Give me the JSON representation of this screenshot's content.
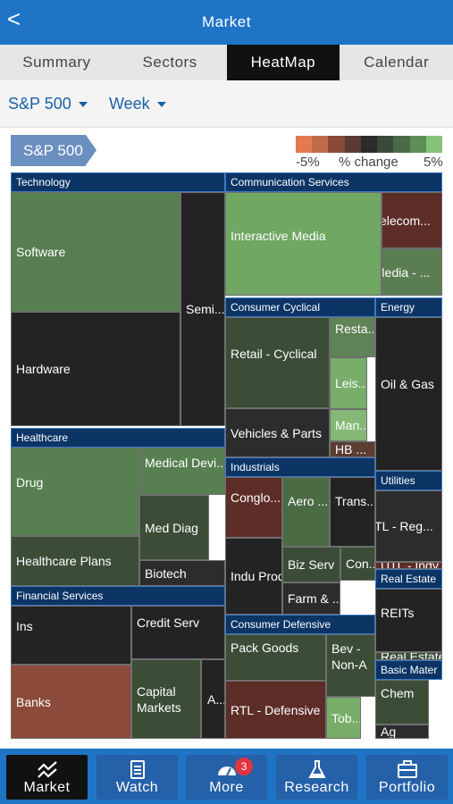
{
  "header": {
    "title": "Market",
    "back": "<"
  },
  "tabs": [
    {
      "label": "Summary"
    },
    {
      "label": "Sectors"
    },
    {
      "label": "HeatMap"
    },
    {
      "label": "Calendar"
    }
  ],
  "filters": {
    "index": "S&P 500",
    "period": "Week"
  },
  "index_pill": "S&P 500",
  "legend": {
    "low": "-5%",
    "mid": "% change",
    "high": "5%",
    "colors": [
      "#e27a52",
      "#bf6a4a",
      "#8a4a3a",
      "#5a3a33",
      "#2d2a2a",
      "#3a4a38",
      "#4d6a48",
      "#5f8f58",
      "#86c27a"
    ]
  },
  "sectors": [
    {
      "name": "Technology"
    },
    {
      "name": "Communication Services"
    },
    {
      "name": "Consumer Cyclical"
    },
    {
      "name": "Energy"
    },
    {
      "name": "Healthcare"
    },
    {
      "name": "Industrials"
    },
    {
      "name": "Utilities"
    },
    {
      "name": "Financial Services"
    },
    {
      "name": "Real Estate"
    },
    {
      "name": "Consumer Defensive"
    },
    {
      "name": "Basic Mater"
    }
  ],
  "cells": [
    {
      "label": "Software",
      "color": "#577f51"
    },
    {
      "label": "Hardware",
      "color": "#232323"
    },
    {
      "label": "Semi...",
      "color": "#232323"
    },
    {
      "label": "Interactive Media",
      "color": "#6fa763"
    },
    {
      "label": "Telecom...",
      "color": "#5d2d27"
    },
    {
      "label": "Media - ...",
      "color": "#5a7e52"
    },
    {
      "label": "Retail - Cyclical",
      "color": "#3b4d37"
    },
    {
      "label": "Resta...",
      "color": "#5f8257"
    },
    {
      "label": "Leis...",
      "color": "#78ad6a"
    },
    {
      "label": "Man...",
      "color": "#85b877"
    },
    {
      "label": "HB ...",
      "color": "#5b3d31"
    },
    {
      "label": "Vehicles & Parts",
      "color": "#2c2c2c"
    },
    {
      "label": "Oil & Gas",
      "color": "#232323"
    },
    {
      "label": "Drug",
      "color": "#577f51"
    },
    {
      "label": "Medical Devi...",
      "color": "#577f51"
    },
    {
      "label": "Med Diag",
      "color": "#3b4d37"
    },
    {
      "label": "Healthcare Plans",
      "color": "#3b4d37"
    },
    {
      "label": "Biotech",
      "color": "#2c2c2c"
    },
    {
      "label": "Conglo...",
      "color": "#5d2d27"
    },
    {
      "label": "Aero ...",
      "color": "#4b6b45"
    },
    {
      "label": "Trans...",
      "color": "#232323"
    },
    {
      "label": "Indu Prod",
      "color": "#232323"
    },
    {
      "label": "Biz Serv",
      "color": "#3b4d37"
    },
    {
      "label": "Con...",
      "color": "#3b4d37"
    },
    {
      "label": "Farm & ...",
      "color": "#2c2c2c"
    },
    {
      "label": "UTL - Reg...",
      "color": "#2c2c2c"
    },
    {
      "label": "UTL - Indy...",
      "color": "#5d2d27"
    },
    {
      "label": "Ins",
      "color": "#232323"
    },
    {
      "label": "Credit Serv",
      "color": "#232323"
    },
    {
      "label": "Banks",
      "color": "#8b4a3a"
    },
    {
      "label": "Capital Markets",
      "color": "#3b4d37"
    },
    {
      "label": "A...",
      "color": "#232323"
    },
    {
      "label": "REITs",
      "color": "#232323"
    },
    {
      "label": "Real Estate ...",
      "color": "#3b4d37"
    },
    {
      "label": "Pack Goods",
      "color": "#3b4d37"
    },
    {
      "label": "Bev - Non-A",
      "color": "#3b4d37"
    },
    {
      "label": "RTL - Defensive",
      "color": "#5d2d27"
    },
    {
      "label": "Tob...",
      "color": "#78ad6a"
    },
    {
      "label": "Chem",
      "color": "#3b4d37"
    },
    {
      "label": "Ag",
      "color": "#2c2c2c"
    }
  ],
  "bottom_nav": [
    {
      "label": "Market",
      "icon": "chart-trend-icon"
    },
    {
      "label": "Watch",
      "icon": "clipboard-icon"
    },
    {
      "label": "More",
      "icon": "gauge-icon",
      "badge": "3"
    },
    {
      "label": "Research",
      "icon": "flask-icon"
    },
    {
      "label": "Portfolio",
      "icon": "briefcase-icon"
    }
  ]
}
